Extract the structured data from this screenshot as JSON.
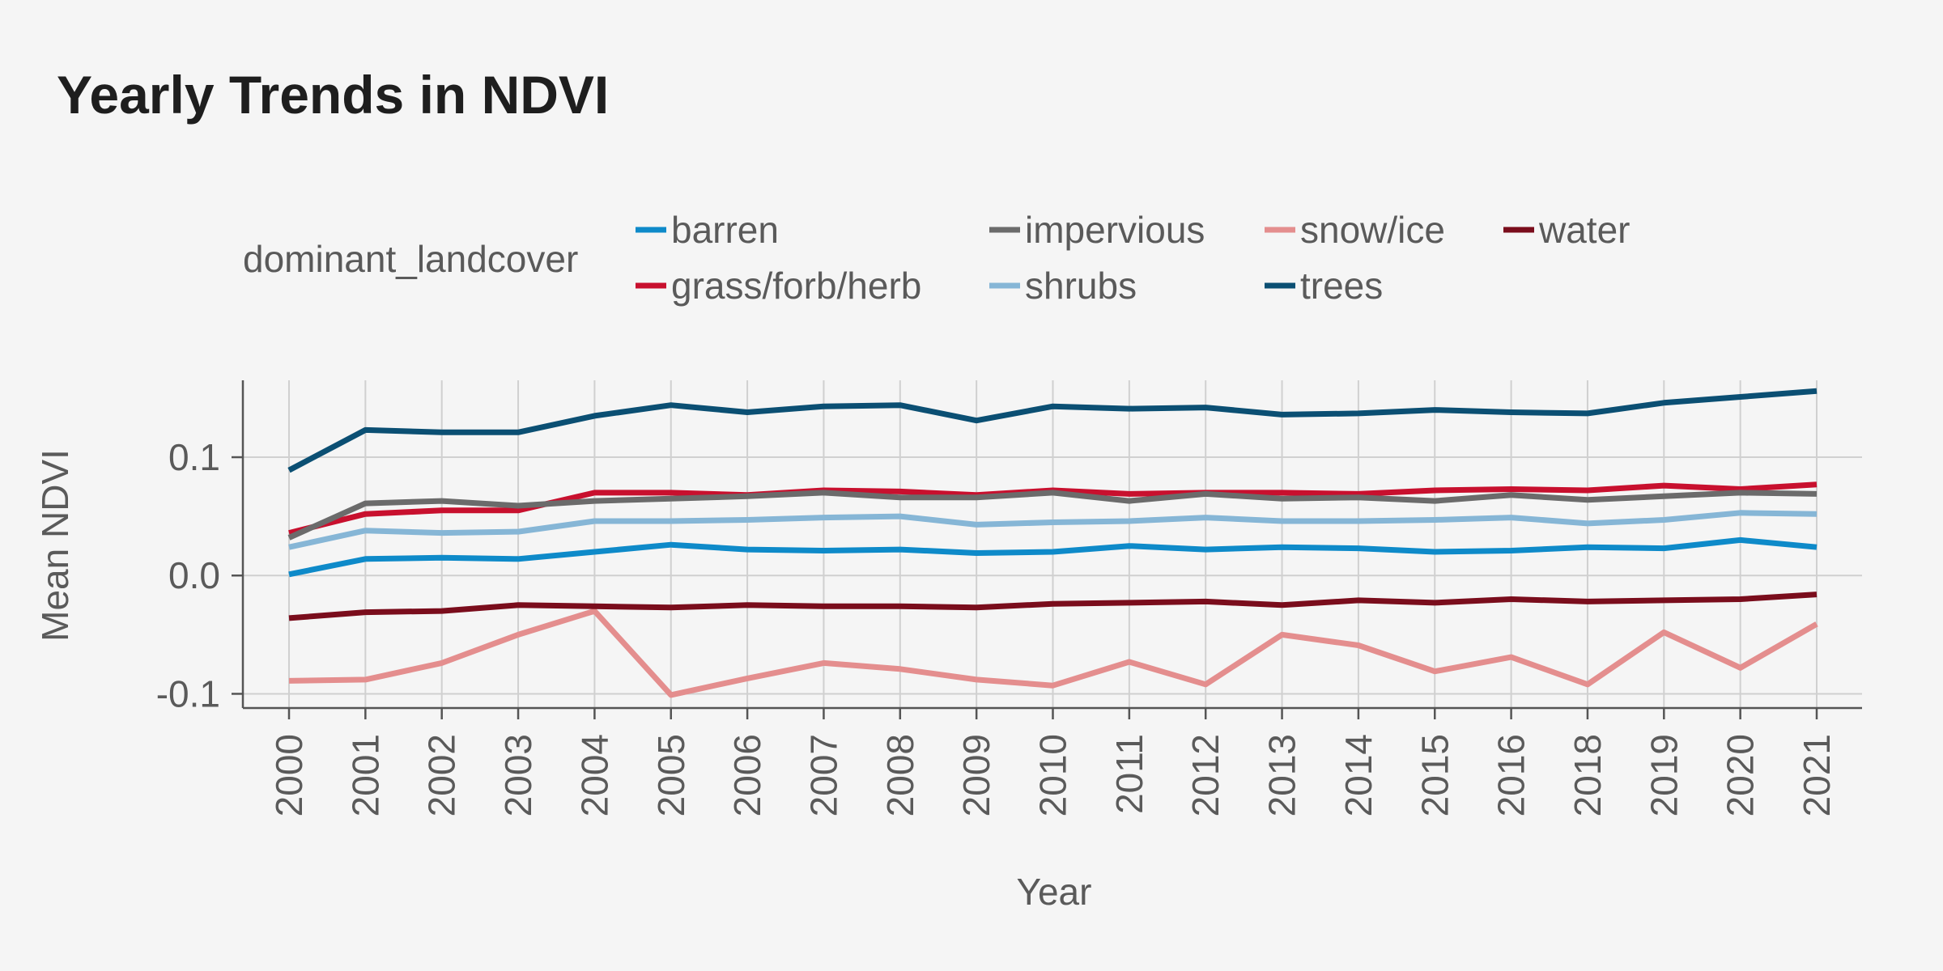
{
  "chart_data": {
    "type": "line",
    "title": "Yearly Trends in NDVI",
    "xlabel": "Year",
    "ylabel": "Mean NDVI",
    "x": [
      "2000",
      "2001",
      "2002",
      "2003",
      "2004",
      "2005",
      "2006",
      "2007",
      "2008",
      "2009",
      "2010",
      "2011",
      "2012",
      "2013",
      "2014",
      "2015",
      "2016",
      "2018",
      "2019",
      "2020",
      "2021"
    ],
    "ylim": [
      -0.112,
      0.165
    ],
    "yticks": [
      -0.1,
      0.0,
      0.1
    ],
    "ytick_labels": [
      "-0.1",
      "0.0",
      "0.1"
    ],
    "grid": true,
    "legend": {
      "title": "dominant_landcover",
      "placement": "top"
    },
    "series": [
      {
        "name": "barren",
        "color": "#0e8ac9",
        "values": [
          0.001,
          0.014,
          0.015,
          0.014,
          0.02,
          0.026,
          0.022,
          0.021,
          0.022,
          0.019,
          0.02,
          0.025,
          0.022,
          0.024,
          0.023,
          0.02,
          0.021,
          0.024,
          0.023,
          0.03,
          0.024
        ]
      },
      {
        "name": "grass/forb/herb",
        "color": "#c8102e",
        "values": [
          0.036,
          0.052,
          0.055,
          0.055,
          0.07,
          0.07,
          0.068,
          0.072,
          0.071,
          0.068,
          0.072,
          0.069,
          0.07,
          0.07,
          0.069,
          0.072,
          0.073,
          0.072,
          0.076,
          0.073,
          0.077
        ]
      },
      {
        "name": "impervious",
        "color": "#6b6b6b",
        "values": [
          0.032,
          0.061,
          0.063,
          0.059,
          0.063,
          0.065,
          0.067,
          0.07,
          0.066,
          0.066,
          0.07,
          0.063,
          0.069,
          0.065,
          0.066,
          0.063,
          0.068,
          0.064,
          0.067,
          0.07,
          0.069
        ]
      },
      {
        "name": "shrubs",
        "color": "#86b6d6",
        "values": [
          0.024,
          0.038,
          0.036,
          0.037,
          0.046,
          0.046,
          0.047,
          0.049,
          0.05,
          0.043,
          0.045,
          0.046,
          0.049,
          0.046,
          0.046,
          0.047,
          0.049,
          0.044,
          0.047,
          0.053,
          0.052
        ]
      },
      {
        "name": "snow/ice",
        "color": "#e48e8e",
        "values": [
          -0.089,
          -0.088,
          -0.074,
          -0.05,
          -0.03,
          -0.101,
          -0.087,
          -0.074,
          -0.079,
          -0.088,
          -0.093,
          -0.073,
          -0.092,
          -0.05,
          -0.059,
          -0.081,
          -0.069,
          -0.092,
          -0.048,
          -0.078,
          -0.041
        ]
      },
      {
        "name": "trees",
        "color": "#0b4f73",
        "values": [
          0.089,
          0.123,
          0.121,
          0.121,
          0.135,
          0.144,
          0.138,
          0.143,
          0.144,
          0.131,
          0.143,
          0.141,
          0.142,
          0.136,
          0.137,
          0.14,
          0.138,
          0.137,
          0.146,
          0.151,
          0.156
        ]
      },
      {
        "name": "water",
        "color": "#7a0d1c",
        "values": [
          -0.036,
          -0.031,
          -0.03,
          -0.025,
          -0.026,
          -0.027,
          -0.025,
          -0.026,
          -0.026,
          -0.027,
          -0.024,
          -0.023,
          -0.022,
          -0.025,
          -0.021,
          -0.023,
          -0.02,
          -0.022,
          -0.021,
          -0.02,
          -0.016
        ]
      }
    ]
  },
  "colors": {
    "background": "#f5f5f5",
    "grid": "#d0d0d0",
    "axis": "#555555",
    "title_text": "#1e1e1e",
    "label_text": "#5a5a5a"
  }
}
